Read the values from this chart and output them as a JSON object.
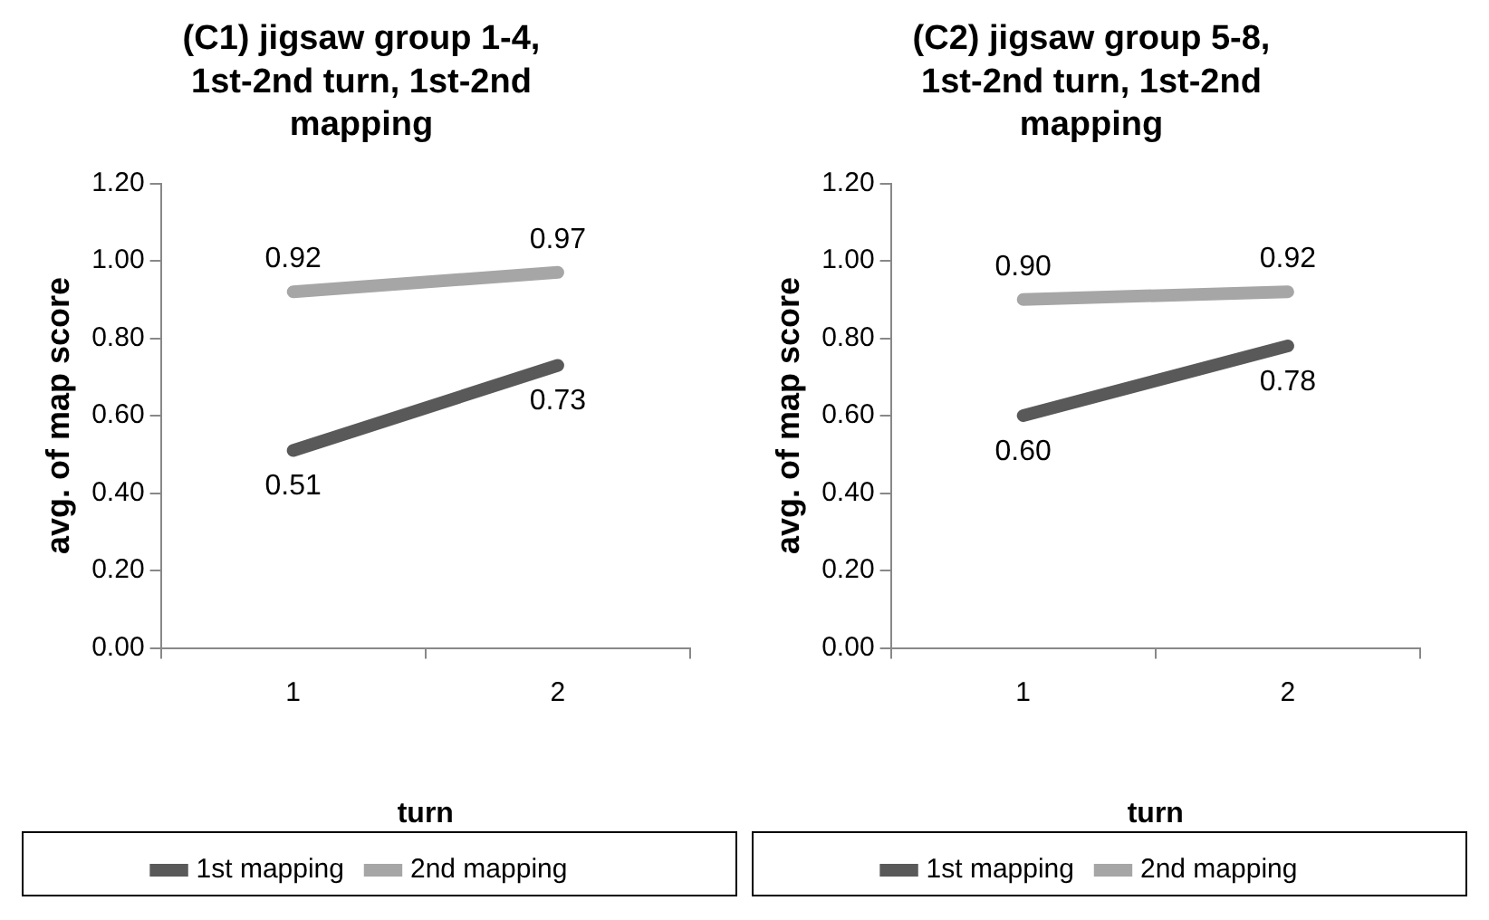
{
  "chart_data": [
    {
      "type": "line",
      "title": "(C1) jigsaw group 1-4, 1st-2nd turn, 1st-2nd mapping",
      "xlabel": "turn",
      "ylabel": "avg. of map score",
      "categories": [
        "1",
        "2"
      ],
      "series": [
        {
          "name": "1st mapping",
          "color": "#595959",
          "values": [
            0.51,
            0.73
          ],
          "value_labels": [
            "0.51",
            "0.73"
          ]
        },
        {
          "name": "2nd mapping",
          "color": "#a6a6a6",
          "values": [
            0.92,
            0.97
          ],
          "value_labels": [
            "0.92",
            "0.97"
          ]
        }
      ],
      "ylim": [
        0,
        1.2
      ],
      "yticks": [
        {
          "value": 0,
          "label": "0.00"
        },
        {
          "value": 0.2,
          "label": "0.20"
        },
        {
          "value": 0.4,
          "label": "0.40"
        },
        {
          "value": 0.6,
          "label": "0.60"
        },
        {
          "value": 0.8,
          "label": "0.80"
        },
        {
          "value": 1,
          "label": "1.00"
        },
        {
          "value": 1.2,
          "label": "1.20"
        }
      ],
      "grid": false,
      "legend": "bottom",
      "marker": "none"
    },
    {
      "type": "line",
      "title": "(C2) jigsaw group 5-8, 1st-2nd turn, 1st-2nd mapping",
      "xlabel": "turn",
      "ylabel": "avg. of map score",
      "categories": [
        "1",
        "2"
      ],
      "series": [
        {
          "name": "1st mapping",
          "color": "#595959",
          "values": [
            0.6,
            0.78
          ],
          "value_labels": [
            "0.60",
            "0.78"
          ]
        },
        {
          "name": "2nd mapping",
          "color": "#a6a6a6",
          "values": [
            0.9,
            0.92
          ],
          "value_labels": [
            "0.90",
            "0.92"
          ]
        }
      ],
      "ylim": [
        0,
        1.2
      ],
      "yticks": [
        {
          "value": 0,
          "label": "0.00"
        },
        {
          "value": 0.2,
          "label": "0.20"
        },
        {
          "value": 0.4,
          "label": "0.40"
        },
        {
          "value": 0.6,
          "label": "0.60"
        },
        {
          "value": 0.8,
          "label": "0.80"
        },
        {
          "value": 1,
          "label": "1.00"
        },
        {
          "value": 1.2,
          "label": "1.20"
        }
      ],
      "grid": false,
      "legend": "bottom",
      "marker": "none"
    }
  ]
}
